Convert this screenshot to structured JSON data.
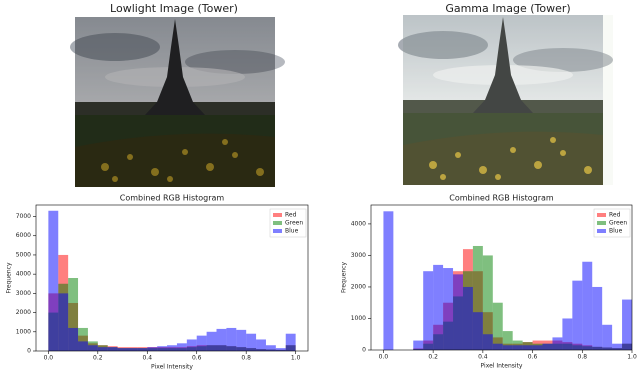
{
  "images": [
    {
      "title": "Lowlight Image (Tower)"
    },
    {
      "title": "Gamma Image (Tower)"
    }
  ],
  "chart_data": [
    {
      "type": "histogram",
      "title": "Combined RGB Histogram",
      "x_label": "Pixel Intensity",
      "y_label": "Frequency",
      "bins": [
        0,
        0.04,
        0.08,
        0.12,
        0.16,
        0.2,
        0.24,
        0.28,
        0.32,
        0.36,
        0.4,
        0.44,
        0.48,
        0.52,
        0.56,
        0.6,
        0.64,
        0.68,
        0.72,
        0.76,
        0.8,
        0.84,
        0.88,
        0.92,
        0.96,
        1.0
      ],
      "series": [
        {
          "name": "Red",
          "color": "#ff0000",
          "values": [
            3000,
            5000,
            2500,
            800,
            400,
            300,
            250,
            200,
            200,
            200,
            200,
            200,
            200,
            200,
            250,
            300,
            300,
            300,
            250,
            200,
            150,
            100,
            80,
            60,
            300
          ]
        },
        {
          "name": "Green",
          "color": "#008000",
          "values": [
            2000,
            3500,
            3800,
            1200,
            500,
            300,
            200,
            150,
            150,
            150,
            150,
            150,
            150,
            150,
            200,
            250,
            300,
            300,
            250,
            200,
            150,
            100,
            80,
            60,
            300
          ]
        },
        {
          "name": "Blue",
          "color": "#0000ff",
          "values": [
            7300,
            3000,
            1200,
            500,
            300,
            200,
            200,
            150,
            150,
            150,
            200,
            250,
            300,
            400,
            600,
            800,
            1000,
            1150,
            1200,
            1100,
            900,
            600,
            300,
            150,
            900
          ]
        }
      ],
      "xlim": [
        -0.05,
        1.05
      ],
      "ylim": [
        0,
        7600
      ],
      "xticks": [
        {
          "value": 0,
          "label": "0.0"
        },
        0.2,
        0.4,
        0.6,
        0.8,
        {
          "value": 1,
          "label": "1.0"
        }
      ],
      "yticks": [
        0,
        1000,
        2000,
        3000,
        4000,
        5000,
        6000,
        7000
      ],
      "legend": "upper right",
      "opacity": 0.5
    },
    {
      "type": "histogram",
      "title": "Combined RGB Histogram",
      "x_label": "Pixel Intensity",
      "y_label": "Frequency",
      "bins": [
        0,
        0.04,
        0.08,
        0.12,
        0.16,
        0.2,
        0.24,
        0.28,
        0.32,
        0.36,
        0.4,
        0.44,
        0.48,
        0.52,
        0.56,
        0.6,
        0.64,
        0.68,
        0.72,
        0.76,
        0.8,
        0.84,
        0.88,
        0.92,
        0.96,
        1.0
      ],
      "series": [
        {
          "name": "Red",
          "color": "#ff0000",
          "values": [
            0,
            0,
            0,
            50,
            300,
            800,
            1500,
            2500,
            3200,
            2500,
            1200,
            400,
            200,
            200,
            250,
            300,
            300,
            300,
            250,
            200,
            150,
            100,
            80,
            60,
            200
          ]
        },
        {
          "name": "Green",
          "color": "#008000",
          "values": [
            0,
            0,
            0,
            30,
            200,
            500,
            900,
            1700,
            2500,
            3300,
            3000,
            1500,
            600,
            300,
            250,
            200,
            200,
            200,
            200,
            150,
            120,
            100,
            80,
            60,
            200
          ]
        },
        {
          "name": "Blue",
          "color": "#0000ff",
          "values": [
            4400,
            0,
            0,
            300,
            2500,
            2700,
            2600,
            2400,
            2000,
            1200,
            500,
            200,
            150,
            150,
            150,
            150,
            200,
            400,
            1000,
            2200,
            2800,
            2000,
            800,
            200,
            1600
          ]
        }
      ],
      "xlim": [
        -0.05,
        1.0
      ],
      "ylim": [
        0,
        4600
      ],
      "xticks": [
        {
          "value": 0,
          "label": "0.0"
        },
        0.2,
        0.4,
        0.6,
        0.8,
        {
          "value": 1,
          "label": "1.0"
        }
      ],
      "yticks": [
        0,
        1000,
        2000,
        3000,
        4000
      ],
      "legend": "upper right",
      "opacity": 0.5
    }
  ]
}
